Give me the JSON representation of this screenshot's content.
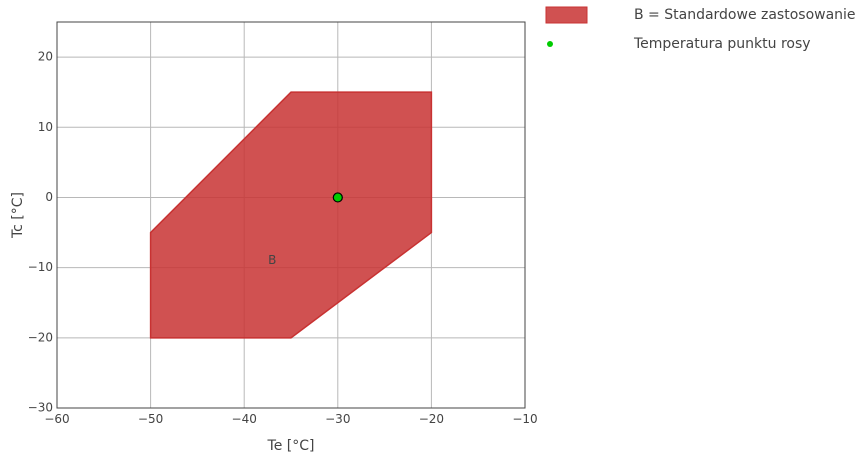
{
  "chart_data": {
    "type": "area",
    "xlabel": "Te [°C]",
    "ylabel": "Tc [°C]",
    "xlim": [
      -60,
      -10
    ],
    "ylim": [
      -30,
      25
    ],
    "xticks": [
      -60,
      -50,
      -40,
      -30,
      -20,
      -10
    ],
    "yticks": [
      -30,
      -20,
      -10,
      0,
      10,
      20
    ],
    "xtick_labels": [
      "−60",
      "−50",
      "−40",
      "−30",
      "−20",
      "−10"
    ],
    "ytick_labels": [
      "−30",
      "−20",
      "−10",
      "0",
      "10",
      "20"
    ],
    "grid": true,
    "legend_position": "top-right, outside plot",
    "series": [
      {
        "name": "B = Standardowe zastosowanie",
        "kind": "polygon",
        "label": "B",
        "label_at": {
          "x": -37,
          "y": -9
        },
        "color": "#c83232",
        "points": [
          {
            "x": -50,
            "y": -5
          },
          {
            "x": -35,
            "y": 15
          },
          {
            "x": -20,
            "y": 15
          },
          {
            "x": -20,
            "y": -5
          },
          {
            "x": -35,
            "y": -20
          },
          {
            "x": -50,
            "y": -20
          }
        ]
      },
      {
        "name": "Temperatura punktu rosy",
        "kind": "point",
        "color": "#00cc00",
        "points": [
          {
            "x": -30,
            "y": 0
          }
        ]
      }
    ]
  }
}
